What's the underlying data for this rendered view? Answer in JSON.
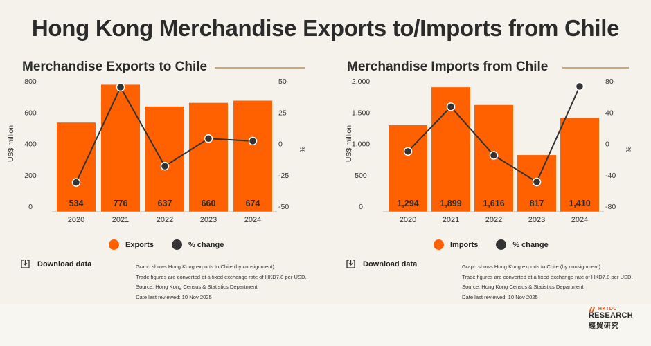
{
  "title": "Hong Kong Merchandise Exports to/Imports from Chile",
  "colors": {
    "bar": "#ff6100",
    "line": "#333333",
    "accent_rule": "#c9a77a",
    "brand": "#e0561d"
  },
  "chart_data": [
    {
      "type": "bar",
      "title": "Merchandise Exports to Chile",
      "categories": [
        "2020",
        "2021",
        "2022",
        "2023",
        "2024"
      ],
      "series": [
        {
          "name": "Exports",
          "type": "bar",
          "axis": "left",
          "values": [
            534,
            776,
            637,
            660,
            674
          ],
          "labels": [
            "534",
            "776",
            "637",
            "660",
            "674"
          ]
        },
        {
          "name": "% change",
          "type": "line",
          "axis": "right",
          "values": [
            -31,
            45,
            -18,
            4,
            2
          ]
        }
      ],
      "ylabel": "US$ million",
      "y2label": "%",
      "ylim": [
        0,
        800
      ],
      "yticks": [
        "0",
        "200",
        "400",
        "600",
        "800"
      ],
      "y2lim": [
        -50,
        50
      ],
      "y2ticks": [
        "-50",
        "-25",
        "0",
        "25",
        "50"
      ],
      "legend": "bottom-center",
      "grid": false
    },
    {
      "type": "bar",
      "title": "Merchandise Imports from Chile",
      "categories": [
        "2020",
        "2021",
        "2022",
        "2023",
        "2024"
      ],
      "series": [
        {
          "name": "Imports",
          "type": "bar",
          "axis": "left",
          "values": [
            1294,
            1899,
            1616,
            817,
            1410
          ],
          "labels": [
            "1,294",
            "1,899",
            "1,616",
            "817",
            "1,410"
          ]
        },
        {
          "name": "% change",
          "type": "line",
          "axis": "right",
          "values": [
            -10,
            47,
            -15,
            -49,
            73
          ]
        }
      ],
      "ylabel": "US$ million",
      "y2label": "%",
      "ylim": [
        0,
        2000
      ],
      "yticks": [
        "0",
        "500",
        "1,000",
        "1,500",
        "2,000"
      ],
      "y2lim": [
        -80,
        80
      ],
      "y2ticks": [
        "-80",
        "-40",
        "0",
        "40",
        "80"
      ],
      "legend": "bottom-center",
      "grid": false
    }
  ],
  "panels": [
    {
      "download_label": "Download data",
      "notes": [
        "Graph shows Hong Kong exports to Chile (by consignment).",
        "Trade figures are converted at a fixed exchange rate of HKD7.8 per USD.",
        "Source: Hong Kong Census & Statistics Department",
        "Date last reviewed: 10 Nov 2025"
      ]
    },
    {
      "download_label": "Download data",
      "notes": [
        "Graph shows Hong Kong exports to Chile (by consignment).",
        "Trade figures are converted at a fixed exchange rate of HKD7.8 per USD.",
        "Source: Hong Kong Census & Statistics Department",
        "Date last reviewed: 10 Nov 2025"
      ]
    }
  ],
  "logo": {
    "brand": "HKTDC",
    "line1": "RESEARCH",
    "line2": "經貿研究"
  },
  "icons": {
    "download": "download-icon",
    "logo_mark": "hktdc-logo-mark"
  }
}
